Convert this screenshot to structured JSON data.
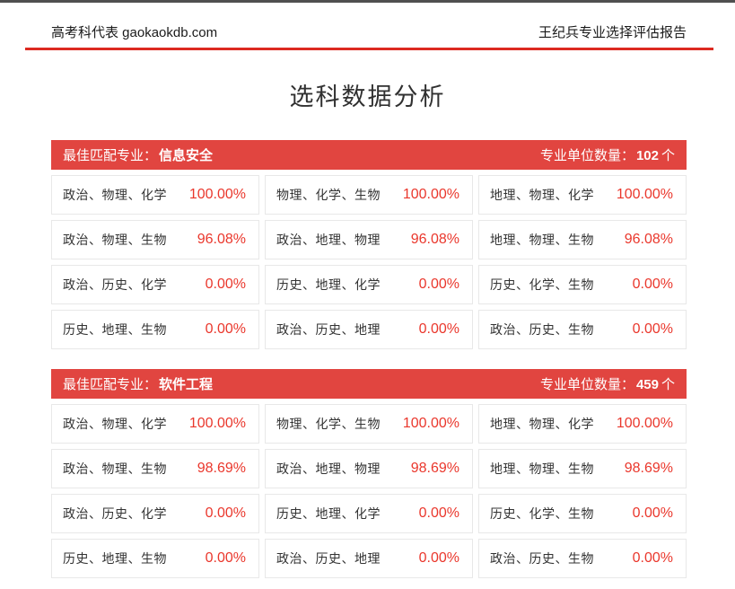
{
  "header": {
    "left": "高考科代表 gaokaokdb.com",
    "right": "王纪兵专业选择评估报告"
  },
  "title": "选科数据分析",
  "colors": {
    "accent_red": "#e14540",
    "percent_red": "#ea372c",
    "rule_red": "#dc2a21",
    "top_bar_gray": "#4f4f4f",
    "cell_border": "#e8e8e8"
  },
  "tables": [
    {
      "best_match_label": "最佳匹配专业：",
      "best_match_value": "信息安全",
      "unit_count_label": "专业单位数量：",
      "unit_count_value": "102",
      "unit_suffix": "个",
      "rows": [
        [
          {
            "combo": "政治、物理、化学",
            "percent": "100.00%"
          },
          {
            "combo": "物理、化学、生物",
            "percent": "100.00%"
          },
          {
            "combo": "地理、物理、化学",
            "percent": "100.00%"
          }
        ],
        [
          {
            "combo": "政治、物理、生物",
            "percent": "96.08%"
          },
          {
            "combo": "政治、地理、物理",
            "percent": "96.08%"
          },
          {
            "combo": "地理、物理、生物",
            "percent": "96.08%"
          }
        ],
        [
          {
            "combo": "政治、历史、化学",
            "percent": "0.00%"
          },
          {
            "combo": "历史、地理、化学",
            "percent": "0.00%"
          },
          {
            "combo": "历史、化学、生物",
            "percent": "0.00%"
          }
        ],
        [
          {
            "combo": "历史、地理、生物",
            "percent": "0.00%"
          },
          {
            "combo": "政治、历史、地理",
            "percent": "0.00%"
          },
          {
            "combo": "政治、历史、生物",
            "percent": "0.00%"
          }
        ]
      ]
    },
    {
      "best_match_label": "最佳匹配专业：",
      "best_match_value": "软件工程",
      "unit_count_label": "专业单位数量：",
      "unit_count_value": "459",
      "unit_suffix": "个",
      "rows": [
        [
          {
            "combo": "政治、物理、化学",
            "percent": "100.00%"
          },
          {
            "combo": "物理、化学、生物",
            "percent": "100.00%"
          },
          {
            "combo": "地理、物理、化学",
            "percent": "100.00%"
          }
        ],
        [
          {
            "combo": "政治、物理、生物",
            "percent": "98.69%"
          },
          {
            "combo": "政治、地理、物理",
            "percent": "98.69%"
          },
          {
            "combo": "地理、物理、生物",
            "percent": "98.69%"
          }
        ],
        [
          {
            "combo": "政治、历史、化学",
            "percent": "0.00%"
          },
          {
            "combo": "历史、地理、化学",
            "percent": "0.00%"
          },
          {
            "combo": "历史、化学、生物",
            "percent": "0.00%"
          }
        ],
        [
          {
            "combo": "历史、地理、生物",
            "percent": "0.00%"
          },
          {
            "combo": "政治、历史、地理",
            "percent": "0.00%"
          },
          {
            "combo": "政治、历史、生物",
            "percent": "0.00%"
          }
        ]
      ]
    }
  ]
}
